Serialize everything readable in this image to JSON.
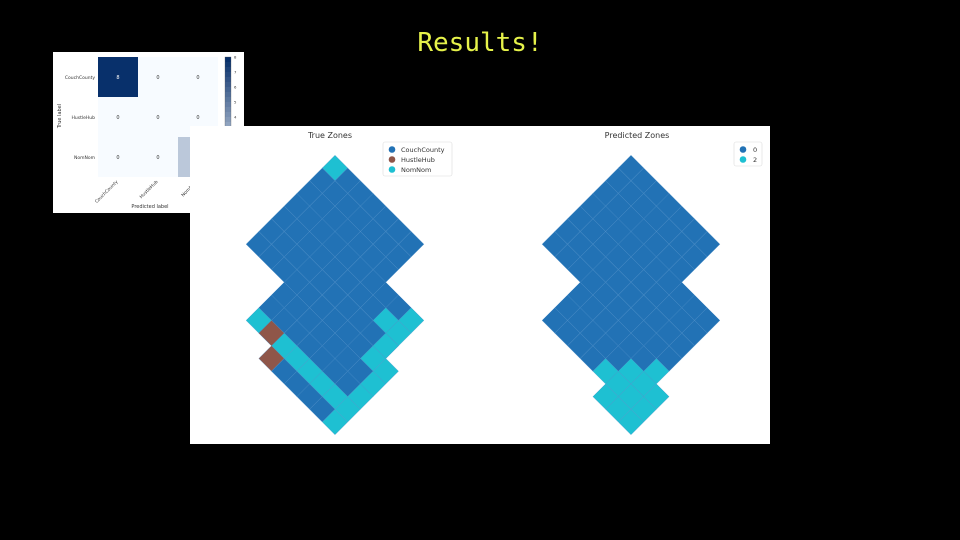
{
  "slide": {
    "title": "Results!"
  },
  "colors": {
    "CouchCounty": "#2272b5",
    "HustleHub": "#8f5649",
    "NomNom": "#1ec0d2",
    "grid": "#4f8fc8"
  },
  "chart_data": [
    {
      "type": "heatmap",
      "xlabel": "Predicted label",
      "ylabel": "True label",
      "x_categories": [
        "CouchCounty",
        "HustleHub",
        "NomNom"
      ],
      "y_categories": [
        "CouchCounty",
        "HustleHub",
        "NomNom"
      ],
      "values": [
        [
          8,
          0,
          0
        ],
        [
          0,
          0,
          0
        ],
        [
          0,
          0,
          2
        ]
      ],
      "colorbar_ticks": [
        "0",
        "1",
        "2",
        "3",
        "4",
        "5",
        "6",
        "7",
        "8"
      ],
      "colorbar_range": [
        0,
        8
      ]
    },
    {
      "type": "scatter",
      "title": "True Zones",
      "legend": [
        "CouchCounty",
        "HustleHub",
        "NomNom"
      ],
      "legend_position": "top-right"
    },
    {
      "type": "scatter",
      "title": "Predicted Zones",
      "legend": [
        "0",
        "2"
      ],
      "legend_position": "top-right"
    }
  ]
}
